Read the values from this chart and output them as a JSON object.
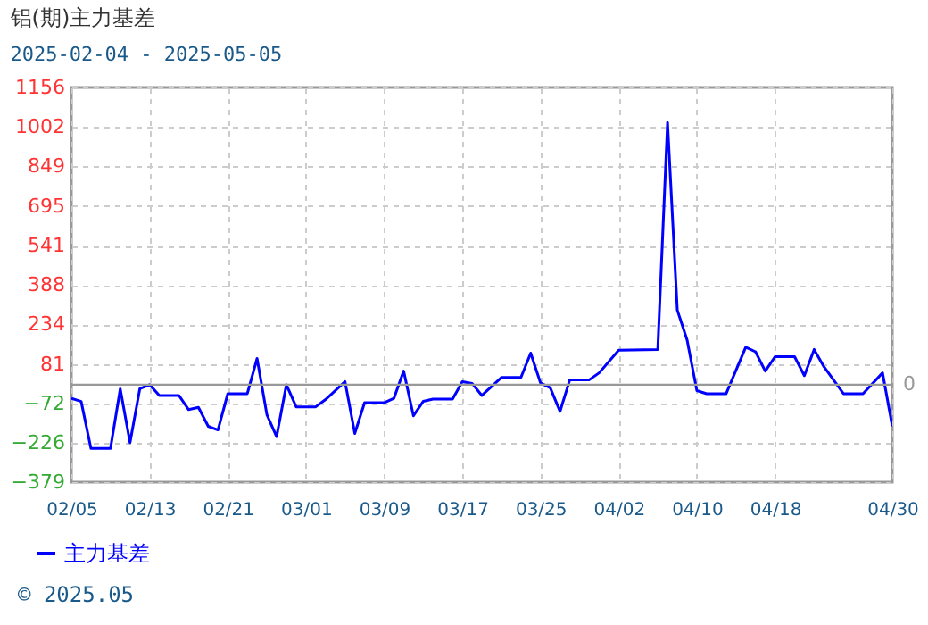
{
  "chart_data": {
    "type": "line",
    "title": "铝(期)主力基差",
    "subtitle": "2025-02-04 - 2025-05-05",
    "x": [
      "2025-02-05",
      "2025-02-06",
      "2025-02-07",
      "2025-02-09",
      "2025-02-10",
      "2025-02-11",
      "2025-02-12",
      "2025-02-13",
      "2025-02-14",
      "2025-02-16",
      "2025-02-17",
      "2025-02-18",
      "2025-02-19",
      "2025-02-20",
      "2025-02-21",
      "2025-02-23",
      "2025-02-24",
      "2025-02-25",
      "2025-02-26",
      "2025-02-27",
      "2025-02-28",
      "2025-03-02",
      "2025-03-03",
      "2025-03-05",
      "2025-03-06",
      "2025-03-07",
      "2025-03-09",
      "2025-03-10",
      "2025-03-11",
      "2025-03-12",
      "2025-03-13",
      "2025-03-14",
      "2025-03-16",
      "2025-03-17",
      "2025-03-18",
      "2025-03-19",
      "2025-03-21",
      "2025-03-23",
      "2025-03-24",
      "2025-03-25",
      "2025-03-26",
      "2025-03-27",
      "2025-03-28",
      "2025-03-30",
      "2025-03-31",
      "2025-04-02",
      "2025-04-06",
      "2025-04-07",
      "2025-04-08",
      "2025-04-09",
      "2025-04-10",
      "2025-04-11",
      "2025-04-13",
      "2025-04-15",
      "2025-04-16",
      "2025-04-17",
      "2025-04-18",
      "2025-04-20",
      "2025-04-21",
      "2025-04-22",
      "2025-04-23",
      "2025-04-25",
      "2025-04-27",
      "2025-04-29",
      "2025-04-30"
    ],
    "series": [
      {
        "name": "主力基差",
        "color": "#0000ff",
        "values": [
          -53,
          -65,
          -248,
          -248,
          -16,
          -225,
          -16,
          0,
          -42,
          -42,
          -97,
          -88,
          -162,
          -176,
          -35,
          -35,
          102,
          -116,
          -202,
          0,
          -86,
          -86,
          -58,
          12,
          -190,
          -70,
          -70,
          -53,
          53,
          -121,
          -65,
          -56,
          -56,
          12,
          5,
          -42,
          28,
          28,
          123,
          7,
          -12,
          -104,
          19,
          19,
          46,
          134,
          137,
          1020,
          290,
          174,
          -23,
          -35,
          -35,
          146,
          128,
          53,
          109,
          109,
          35,
          137,
          70,
          -35,
          -35,
          46,
          -162
        ]
      }
    ],
    "xlim": [
      "2025-02-05",
      "2025-04-30"
    ],
    "xticks": [
      {
        "value": "2025-02-05",
        "label": "02/05"
      },
      {
        "value": "2025-02-13",
        "label": "02/13"
      },
      {
        "value": "2025-02-21",
        "label": "02/21"
      },
      {
        "value": "2025-03-01",
        "label": "03/01"
      },
      {
        "value": "2025-03-09",
        "label": "03/09"
      },
      {
        "value": "2025-03-17",
        "label": "03/17"
      },
      {
        "value": "2025-03-25",
        "label": "03/25"
      },
      {
        "value": "2025-04-02",
        "label": "04/02"
      },
      {
        "value": "2025-04-10",
        "label": "04/10"
      },
      {
        "value": "2025-04-18",
        "label": "04/18"
      },
      {
        "value": "2025-04-30",
        "label": "04/30"
      }
    ],
    "ylim": [
      -379,
      1156
    ],
    "yticks": [
      -379,
      -226,
      -72,
      81,
      234,
      388,
      541,
      695,
      849,
      1002,
      1156
    ],
    "ref_lines": [
      {
        "axis": "y",
        "value": 0,
        "label": "0",
        "color": "#999999"
      }
    ],
    "annotations": [
      "© 2025.05"
    ],
    "grid": true,
    "legend": "bottom left",
    "marker": "none",
    "line_style": "solid"
  }
}
